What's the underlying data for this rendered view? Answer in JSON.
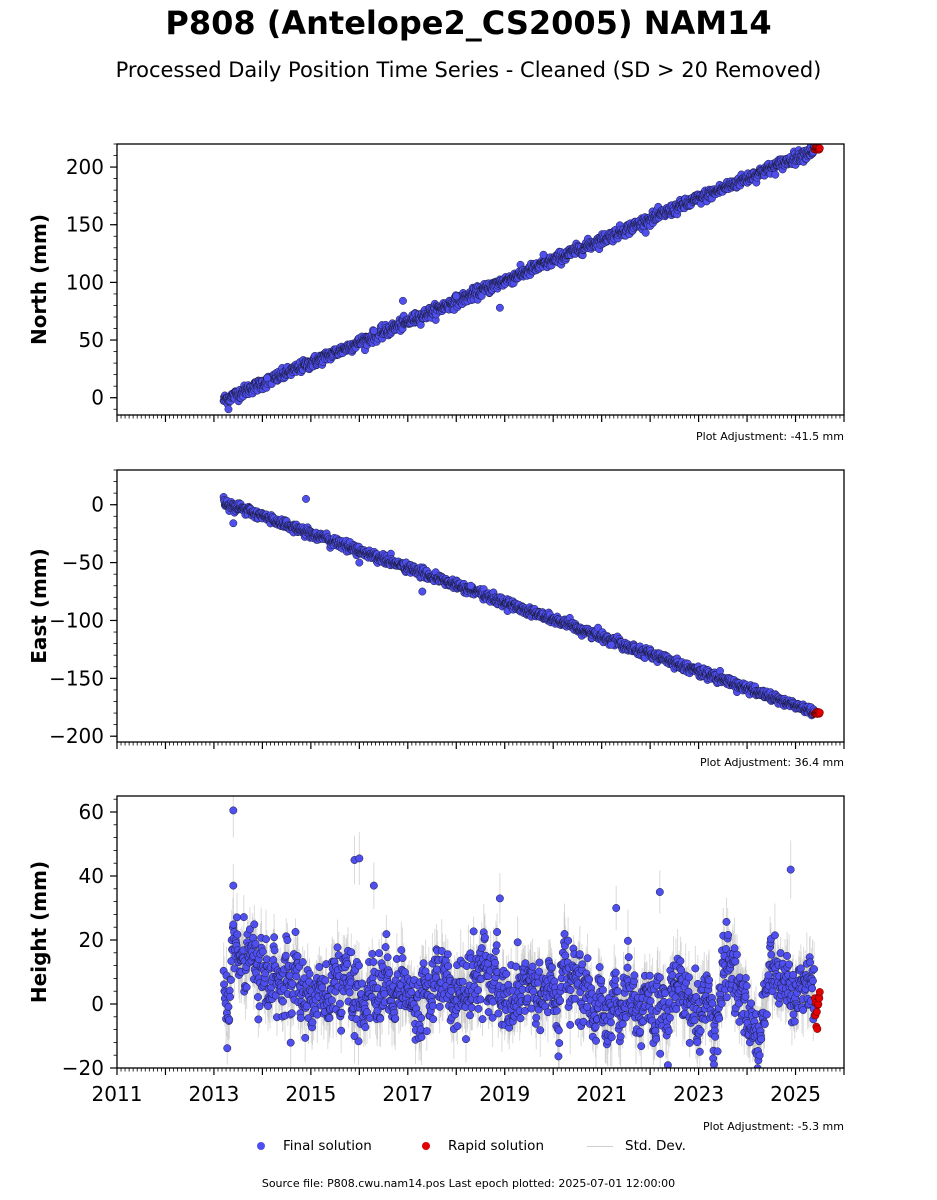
{
  "page": {
    "title": "P808 (Antelope2_CS2005) NAM14",
    "subtitle": "Processed Daily Position Time Series - Cleaned (SD > 20 Removed)",
    "footer": "Source file: P808.cwu.nam14.pos  Last epoch plotted: 2025-07-01 12:00:00"
  },
  "legend": {
    "final_label": "Final solution",
    "rapid_label": "Rapid solution",
    "std_label": "Std. Dev."
  },
  "colors": {
    "final": "#4f4ff0",
    "final_edge": "#1a1a3a",
    "rapid": "#e00000",
    "std": "#bdbdbd"
  },
  "chart_data": [
    {
      "type": "scatter",
      "ylabel": "North (mm)",
      "xlim": [
        2011,
        2026
      ],
      "ylim": [
        -15,
        220
      ],
      "yticks": [
        0,
        50,
        100,
        150,
        200
      ],
      "xtick_labels_shown": false,
      "adjustment": "Plot Adjustment: -41.5 mm",
      "trend": {
        "start": [
          2013.2,
          -2
        ],
        "end": [
          2025.5,
          217
        ],
        "scatter_sd": 2.5
      },
      "rapid": {
        "start": 2025.4,
        "end": 2025.5,
        "value": 216
      },
      "outliers": [
        [
          2016.3,
          58
        ],
        [
          2016.9,
          84
        ],
        [
          2018.0,
          88
        ],
        [
          2018.9,
          78
        ],
        [
          2019.8,
          124
        ],
        [
          2014.1,
          17
        ],
        [
          2013.3,
          -10
        ]
      ]
    },
    {
      "type": "scatter",
      "ylabel": "East (mm)",
      "xlim": [
        2011,
        2026
      ],
      "ylim": [
        -205,
        30
      ],
      "yticks": [
        -200,
        -150,
        -100,
        -50,
        0
      ],
      "xtick_labels_shown": false,
      "adjustment": "Plot Adjustment: 36.4 mm",
      "trend": {
        "start": [
          2013.2,
          2
        ],
        "end": [
          2025.5,
          -181
        ],
        "scatter_sd": 2.0
      },
      "rapid": {
        "start": 2025.4,
        "end": 2025.5,
        "value": -180
      },
      "outliers": [
        [
          2014.9,
          5
        ],
        [
          2013.4,
          -16
        ],
        [
          2016.0,
          -50
        ],
        [
          2017.3,
          -75
        ],
        [
          2018.3,
          -70
        ],
        [
          2021.2,
          -121
        ]
      ]
    },
    {
      "type": "scatter",
      "ylabel": "Height (mm)",
      "xlabel": "",
      "xlim": [
        2011,
        2026
      ],
      "ylim": [
        -20,
        65
      ],
      "yticks": [
        -20,
        0,
        20,
        40,
        60
      ],
      "xticks": [
        2011,
        2013,
        2015,
        2017,
        2019,
        2021,
        2023,
        2025
      ],
      "xtick_labels_shown": true,
      "adjustment": "Plot Adjustment: -5.3 mm",
      "trend": {
        "start": [
          2013.2,
          8
        ],
        "end": [
          2025.5,
          0
        ],
        "scatter_sd": 6.5
      },
      "rapid": {
        "start": 2025.4,
        "end": 2025.5,
        "value": -2,
        "spread": 6
      },
      "outliers": [
        [
          2013.4,
          60.5
        ],
        [
          2013.4,
          37
        ],
        [
          2015.9,
          45
        ],
        [
          2016.0,
          45.5
        ],
        [
          2015.9,
          -10
        ],
        [
          2024.9,
          42
        ],
        [
          2018.9,
          33
        ],
        [
          2022.2,
          35
        ],
        [
          2021.3,
          30
        ],
        [
          2016.3,
          37
        ]
      ]
    }
  ]
}
